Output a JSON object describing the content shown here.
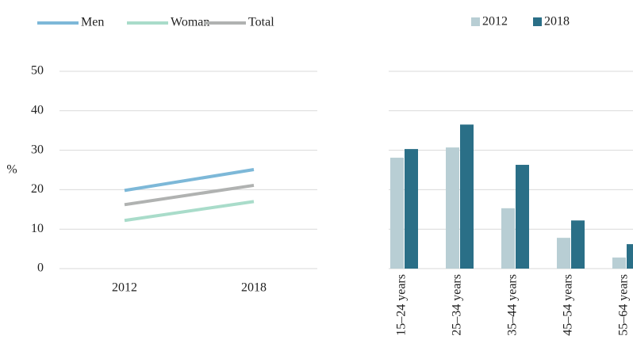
{
  "chart_data": [
    {
      "type": "line",
      "y_label": "%",
      "categories": [
        "2012",
        "2018"
      ],
      "series": [
        {
          "name": "Men",
          "color": "#7db8d8",
          "values": [
            19.8,
            25.1
          ]
        },
        {
          "name": "Woman",
          "color": "#a9dcca",
          "values": [
            12.2,
            17.0
          ]
        },
        {
          "name": "Total",
          "color": "#b0b2b1",
          "values": [
            16.2,
            21.1
          ]
        }
      ],
      "ylim": [
        0,
        50
      ],
      "yticks": [
        0,
        10,
        20,
        30,
        40,
        50
      ],
      "grid": true
    },
    {
      "type": "bar",
      "categories": [
        "15–24 years",
        "25–34 years",
        "35–44 years",
        "45–54 years",
        "55–64 years"
      ],
      "series": [
        {
          "name": "2012",
          "color": "#b8ced4",
          "values": [
            28.1,
            30.7,
            15.3,
            7.8,
            2.8
          ]
        },
        {
          "name": "2018",
          "color": "#2a6f87",
          "values": [
            30.3,
            36.5,
            26.3,
            12.2,
            6.2
          ]
        }
      ],
      "ylim": [
        0,
        50
      ],
      "yticks": [
        0,
        10,
        20,
        30,
        40,
        50
      ],
      "grid": true
    }
  ]
}
